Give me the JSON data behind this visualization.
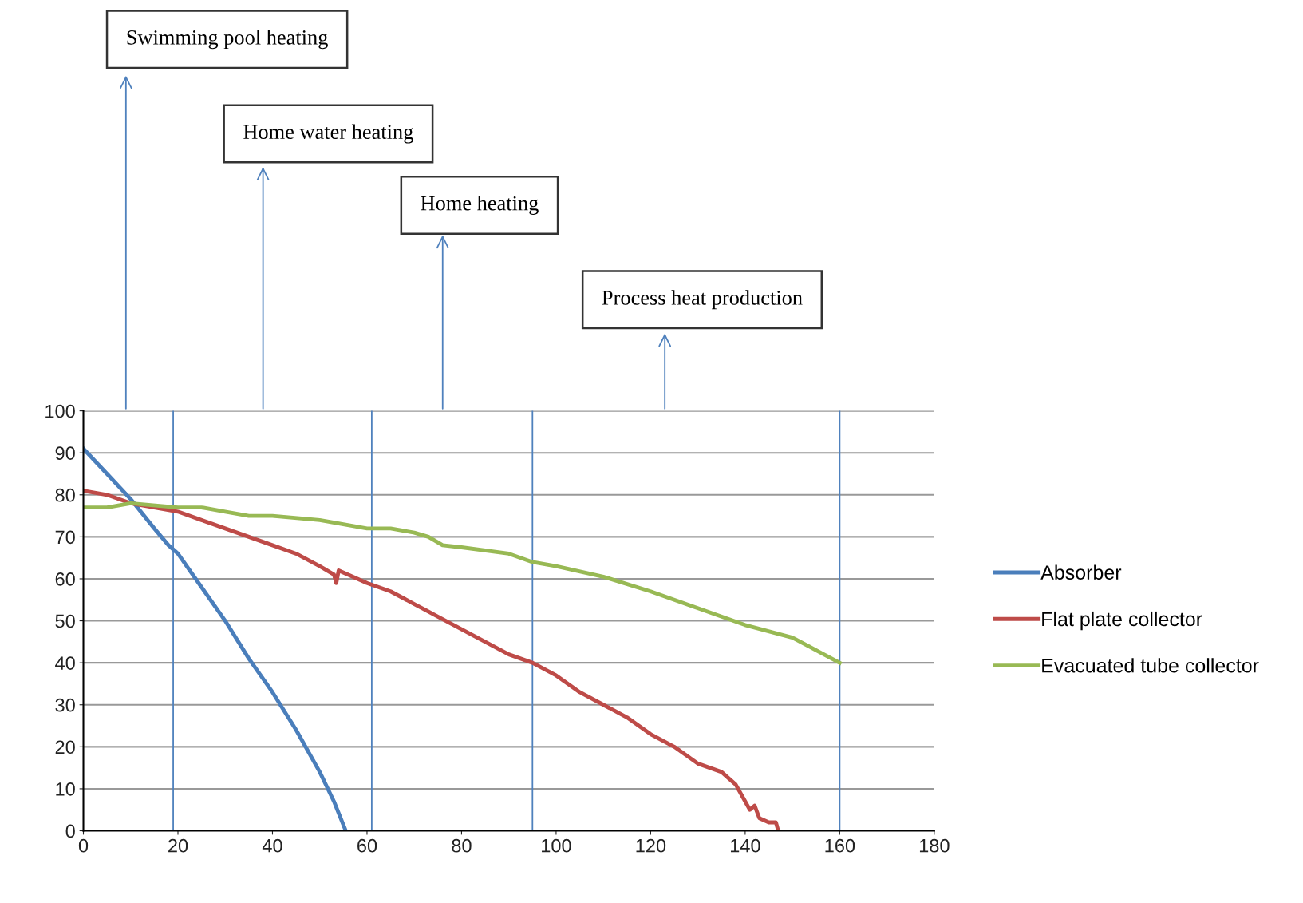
{
  "chart_data": {
    "type": "line",
    "xlim": [
      0,
      180
    ],
    "xticks": [
      0,
      20,
      40,
      60,
      80,
      100,
      120,
      140,
      160,
      180
    ],
    "ylim": [
      0,
      100
    ],
    "yticks": [
      0,
      10,
      20,
      30,
      40,
      50,
      60,
      70,
      80,
      90,
      100
    ],
    "grid": "y",
    "legend": "right",
    "marker": "none",
    "line_style": "solid",
    "series": [
      {
        "name": "Absorber",
        "color": "#4a7ebb",
        "x": [
          0,
          5,
          10,
          15,
          18,
          20,
          25,
          30,
          35,
          40,
          45,
          50,
          53,
          55.5
        ],
        "values": [
          91,
          85,
          79,
          72,
          68,
          66,
          58,
          50,
          41,
          33,
          24,
          14,
          7,
          0
        ]
      },
      {
        "name": "Flat plate collector",
        "color": "#be4b48",
        "x": [
          0,
          5,
          10,
          15,
          20,
          25,
          30,
          35,
          40,
          45,
          50,
          53,
          53.5,
          54,
          60,
          65,
          70,
          75,
          80,
          85,
          90,
          95,
          100,
          105,
          110,
          115,
          120,
          125,
          130,
          135,
          138,
          140,
          141,
          142,
          143,
          145,
          146.5,
          147
        ],
        "values": [
          81,
          80,
          78,
          77,
          76,
          74,
          72,
          70,
          68,
          66,
          63,
          61,
          59,
          62,
          59,
          57,
          54,
          51,
          48,
          45,
          42,
          40,
          37,
          33,
          30,
          27,
          23,
          20,
          16,
          14,
          11,
          7,
          5,
          6,
          3,
          2,
          2,
          0
        ]
      },
      {
        "name": "Evacuated tube collector",
        "color": "#98b954",
        "x": [
          0,
          5,
          10,
          20,
          25,
          30,
          35,
          40,
          50,
          55,
          60,
          65,
          70,
          73,
          76,
          80,
          90,
          95,
          100,
          110,
          120,
          130,
          140,
          150,
          155,
          160
        ],
        "values": [
          77,
          77,
          78,
          77,
          77,
          76,
          75,
          75,
          74,
          73,
          72,
          72,
          71,
          70,
          68,
          67.5,
          66,
          64,
          63,
          60.5,
          57,
          53,
          49,
          46,
          43,
          40
        ]
      }
    ],
    "ref_lines": [
      {
        "axis": "x",
        "value": 19,
        "color": "#4f81bd"
      },
      {
        "axis": "x",
        "value": 61,
        "color": "#4f81bd"
      },
      {
        "axis": "x",
        "value": 95,
        "color": "#4f81bd"
      },
      {
        "axis": "x",
        "value": 160,
        "color": "#4f81bd"
      }
    ],
    "annotations": [
      "Swimming pool heating",
      "Home water heating",
      "Home heating",
      "Process heat production"
    ]
  }
}
